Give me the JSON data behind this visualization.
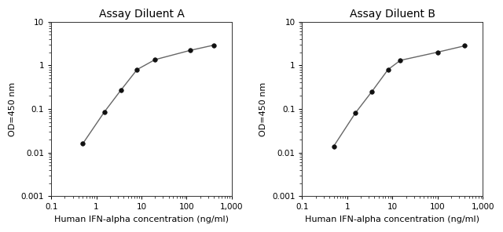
{
  "panel_A": {
    "title": "Assay Diluent A",
    "x": [
      0.5,
      1.5,
      3.5,
      8,
      20,
      120,
      400
    ],
    "y": [
      0.016,
      0.085,
      0.27,
      0.8,
      1.35,
      2.2,
      2.9
    ],
    "xlabel": "Human IFN-alpha concentration (ng/ml)",
    "ylabel": "OD=450 nm",
    "xlim": [
      0.1,
      1000
    ],
    "ylim": [
      0.001,
      10
    ]
  },
  "panel_B": {
    "title": "Assay Diluent B",
    "x": [
      0.5,
      1.5,
      3.5,
      8,
      15,
      100,
      400
    ],
    "y": [
      0.014,
      0.08,
      0.25,
      0.8,
      1.3,
      2.0,
      2.8
    ],
    "xlabel": "Human IFN-alpha concentration (ng/ml)",
    "ylabel": "OD=450 nm",
    "xlim": [
      0.1,
      1000
    ],
    "ylim": [
      0.001,
      10
    ]
  },
  "line_color": "#666666",
  "marker_color": "#111111",
  "marker_size": 4,
  "line_width": 1.0,
  "bg_color": "#ffffff",
  "title_fontsize": 10,
  "label_fontsize": 8,
  "tick_fontsize": 7.5
}
